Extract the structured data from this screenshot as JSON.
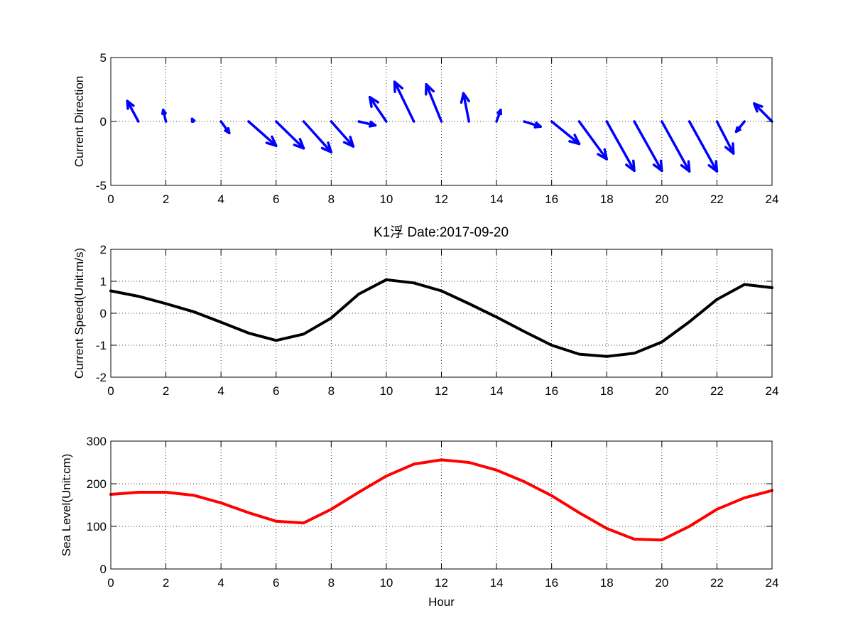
{
  "figure": {
    "title": "K1浮   Date:2017-09-20",
    "title_color": "#ff0000",
    "background": "#ffffff"
  },
  "chart_data": [
    {
      "type": "quiver",
      "ylabel": "Current Direction",
      "xlabel": "",
      "xlim": [
        0,
        24
      ],
      "ylim": [
        -5,
        5
      ],
      "xticks": [
        "0",
        "2",
        "4",
        "6",
        "8",
        "10",
        "12",
        "14",
        "16",
        "18",
        "20",
        "22",
        "24"
      ],
      "yticks": [
        "-5",
        "0",
        "5"
      ],
      "grid": true,
      "color": "#0000ff",
      "x": [
        0,
        1,
        2,
        3,
        4,
        5,
        6,
        7,
        8,
        9,
        10,
        11,
        12,
        13,
        14,
        15,
        16,
        17,
        18,
        19,
        20,
        21,
        22,
        23,
        24
      ],
      "u": [
        0.0,
        -0.4,
        -0.1,
        -0.05,
        0.3,
        1.0,
        1.0,
        1.0,
        0.8,
        0.6,
        -0.6,
        -0.7,
        -0.55,
        -0.2,
        0.15,
        0.6,
        1.0,
        1.0,
        1.0,
        1.0,
        1.0,
        1.0,
        0.6,
        -0.3,
        -0.65
      ],
      "v": [
        0.0,
        1.6,
        0.9,
        0.2,
        -0.9,
        -1.9,
        -2.1,
        -2.4,
        -1.95,
        -0.3,
        1.9,
        3.1,
        2.9,
        2.2,
        0.9,
        -0.4,
        -1.75,
        -2.95,
        -3.85,
        -3.85,
        -3.9,
        -3.9,
        -2.5,
        -0.8,
        1.4
      ]
    },
    {
      "type": "line",
      "ylabel": "Current Speed(Unit:m/s)",
      "xlabel": "",
      "xlim": [
        0,
        24
      ],
      "ylim": [
        -2,
        2
      ],
      "xticks": [
        "0",
        "2",
        "4",
        "6",
        "8",
        "10",
        "12",
        "14",
        "16",
        "18",
        "20",
        "22",
        "24"
      ],
      "yticks": [
        "-2",
        "-1",
        "0",
        "1",
        "2"
      ],
      "grid": true,
      "color": "#000000",
      "x": [
        0,
        1,
        2,
        3,
        4,
        5,
        6,
        7,
        8,
        9,
        10,
        11,
        12,
        13,
        14,
        15,
        16,
        17,
        18,
        19,
        20,
        21,
        22,
        23,
        24
      ],
      "y": [
        0.7,
        0.53,
        0.3,
        0.05,
        -0.28,
        -0.62,
        -0.85,
        -0.65,
        -0.15,
        0.6,
        1.05,
        0.95,
        0.7,
        0.3,
        -0.12,
        -0.57,
        -1.0,
        -1.28,
        -1.35,
        -1.25,
        -0.9,
        -0.27,
        0.43,
        0.9,
        0.8
      ]
    },
    {
      "type": "line",
      "ylabel": "Sea Level(Unit:cm)",
      "xlabel": "Hour",
      "xlim": [
        0,
        24
      ],
      "ylim": [
        0,
        300
      ],
      "xticks": [
        "0",
        "2",
        "4",
        "6",
        "8",
        "10",
        "12",
        "14",
        "16",
        "18",
        "20",
        "22",
        "24"
      ],
      "yticks": [
        "0",
        "100",
        "200",
        "300"
      ],
      "grid": true,
      "color": "#ff0000",
      "x": [
        0,
        1,
        2,
        3,
        4,
        5,
        6,
        7,
        8,
        9,
        10,
        11,
        12,
        13,
        14,
        15,
        16,
        17,
        18,
        19,
        20,
        21,
        22,
        23,
        24
      ],
      "y": [
        175,
        180,
        180,
        173,
        155,
        132,
        112,
        108,
        140,
        180,
        218,
        246,
        256,
        250,
        232,
        205,
        172,
        132,
        95,
        70,
        68,
        100,
        140,
        167,
        184
      ]
    }
  ]
}
